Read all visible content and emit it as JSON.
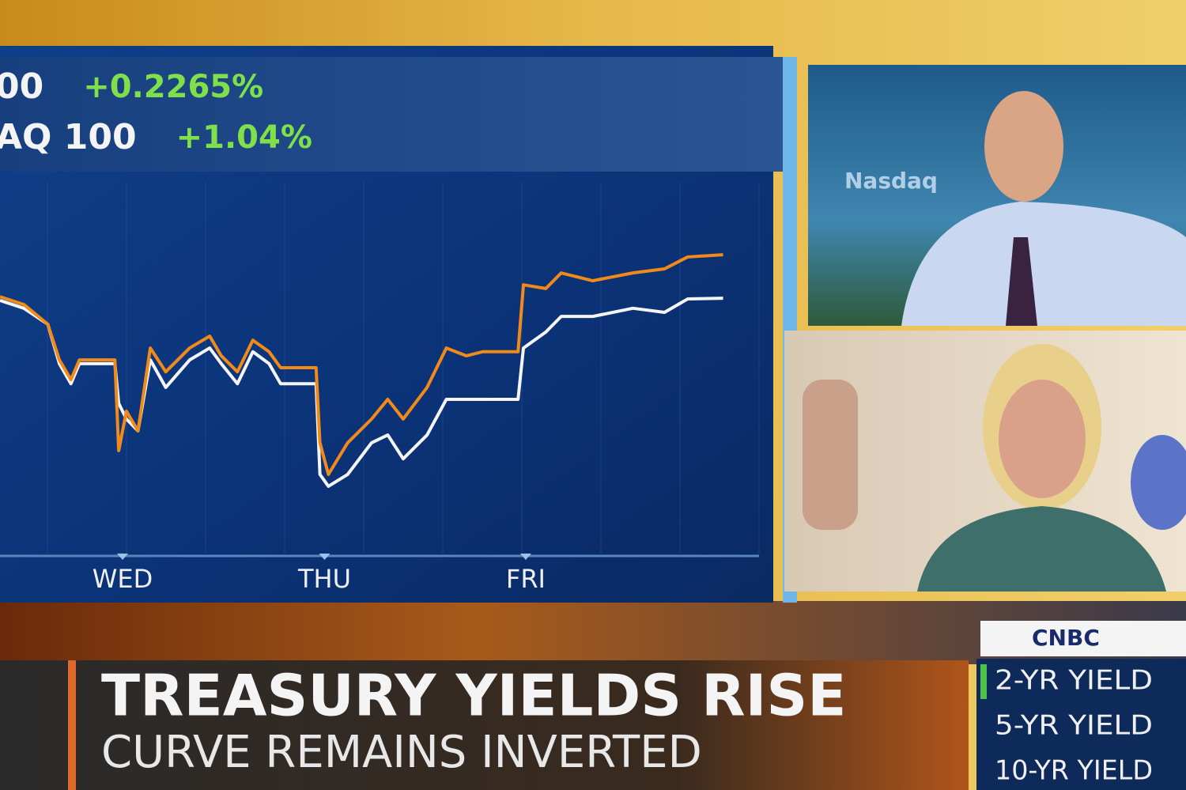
{
  "chart_data": {
    "type": "line",
    "x": [
      0,
      3.1,
      6.2,
      7.7,
      9.2,
      10.3,
      14.9,
      15.4,
      16.4,
      17.9,
      19.5,
      21.5,
      24.6,
      27.2,
      28.7,
      30.8,
      32.8,
      34.9,
      36.4,
      41.0,
      41.5,
      42.6,
      45.1,
      48.2,
      50.3,
      52.3,
      55.4,
      57.9,
      60.5,
      62.6,
      67.2,
      67.9,
      70.8,
      72.8,
      76.9,
      82.1,
      86.2,
      89.2,
      93.8
    ],
    "xlim": [
      0,
      100
    ],
    "xticks": [
      {
        "value": 15.9,
        "label": "WED"
      },
      {
        "value": 42.1,
        "label": "THU"
      },
      {
        "value": 68.2,
        "label": "FRI"
      }
    ],
    "ylim": [
      0,
      100
    ],
    "series": [
      {
        "name": "00",
        "change": "+0.2265%",
        "color": "#f5f5f5",
        "values": [
          68.1,
          66.0,
          61.7,
          51.1,
          45.7,
          51.1,
          51.1,
          40.4,
          36.2,
          33.0,
          52.1,
          44.7,
          52.1,
          55.3,
          51.1,
          45.7,
          54.3,
          51.1,
          45.7,
          45.7,
          21.3,
          18.1,
          21.3,
          29.8,
          31.9,
          25.5,
          31.9,
          41.5,
          41.5,
          41.5,
          41.5,
          55.3,
          59.6,
          63.8,
          63.8,
          66.0,
          64.9,
          68.5,
          68.7
        ]
      },
      {
        "name": "AQ 100",
        "change": "+1.04%",
        "color": "#f28a1a",
        "values": [
          69.1,
          67.0,
          61.7,
          52.1,
          46.8,
          52.1,
          52.1,
          27.7,
          38.3,
          33.0,
          55.3,
          48.9,
          55.3,
          58.5,
          53.2,
          48.9,
          57.4,
          54.3,
          50.0,
          50.0,
          29.8,
          21.3,
          29.8,
          36.2,
          41.5,
          36.2,
          44.7,
          55.3,
          53.2,
          54.3,
          54.3,
          72.3,
          71.3,
          75.5,
          73.4,
          75.5,
          76.6,
          79.8,
          80.4
        ]
      }
    ]
  },
  "background_sign": "Nasdaq",
  "banner": {
    "headline": "TREASURY YIELDS RISE",
    "subheadline": "CURVE REMAINS INVERTED"
  },
  "network": "CNBC",
  "yields": [
    "2-YR YIELD",
    "5-YR YIELD",
    "10-YR YIELD"
  ]
}
